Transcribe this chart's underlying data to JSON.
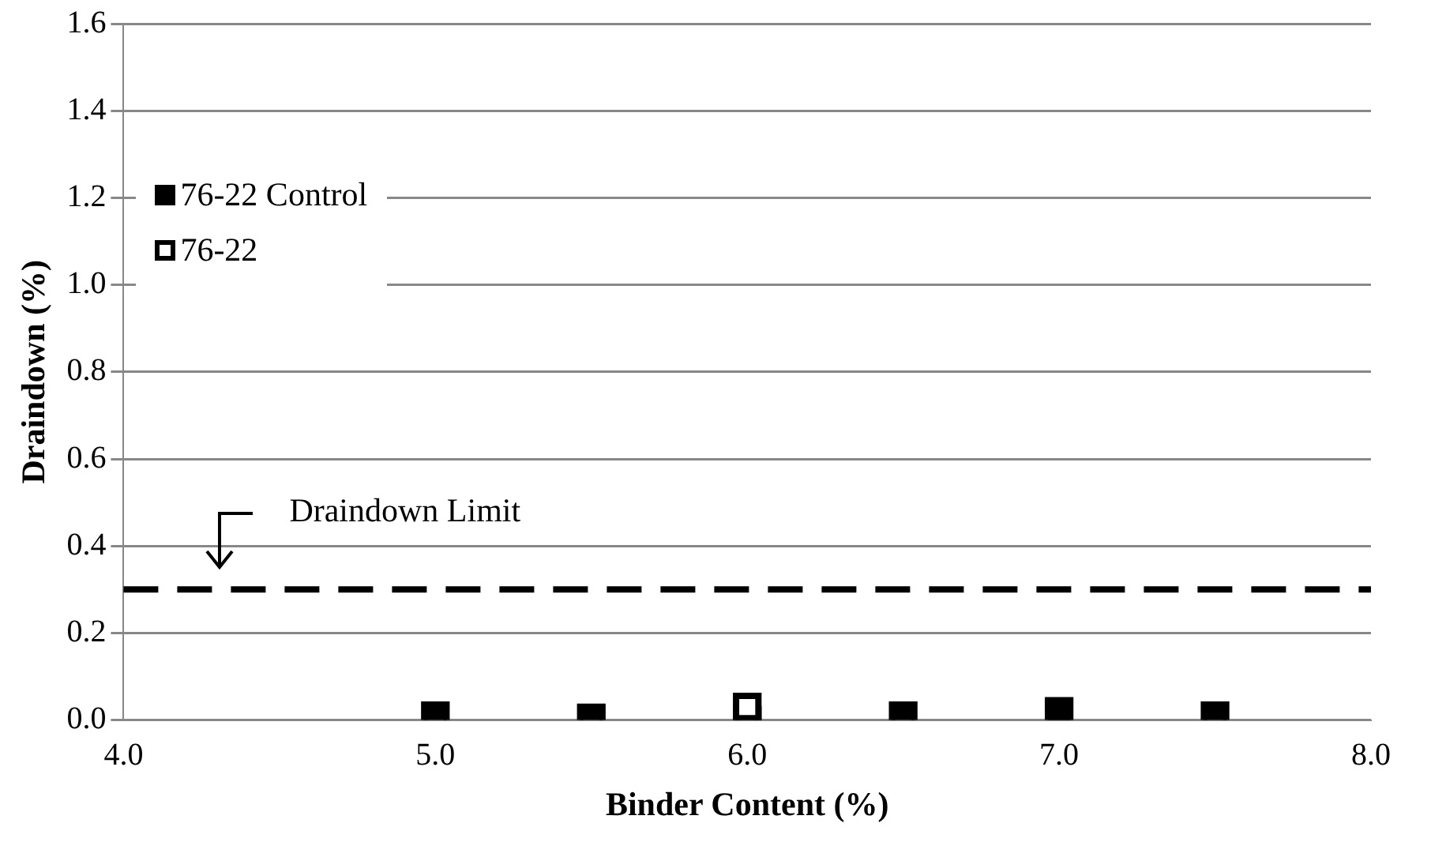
{
  "chart_data": {
    "type": "scatter",
    "xlabel": "Binder Content (%)",
    "ylabel": "Draindown (%)",
    "series": [
      {
        "name": "76-22 Control",
        "color": "#000000",
        "x": [
          5.0,
          5.5,
          6.0,
          6.5,
          7.0,
          7.5
        ],
        "values": [
          0.01,
          0.005,
          0,
          0.01,
          0.02,
          0.01
        ]
      },
      {
        "name": "76-22",
        "color": "#000000",
        "x": [
          6.0
        ],
        "values": [
          0.03
        ]
      }
    ],
    "xlim": [
      4,
      8
    ],
    "xticks": [
      {
        "value": 4,
        "label": "4.0"
      },
      {
        "value": 5,
        "label": "5.0"
      },
      {
        "value": 6,
        "label": "6.0"
      },
      {
        "value": 7,
        "label": "7.0"
      },
      {
        "value": 8,
        "label": "8.0"
      }
    ],
    "ylim": [
      0,
      1.6
    ],
    "yticks": [
      {
        "value": 0,
        "label": "0.0"
      },
      0.2,
      0.4,
      0.6,
      0.8,
      {
        "value": 1,
        "label": "1.0"
      },
      1.2,
      1.4,
      1.6
    ],
    "ref_lines": [
      {
        "axis": "y",
        "value": 0.3,
        "label": "Draindown Limit",
        "color": "#000000",
        "line_style": "dashed"
      }
    ],
    "grid": "y",
    "legend": "top left",
    "marker": "square"
  }
}
